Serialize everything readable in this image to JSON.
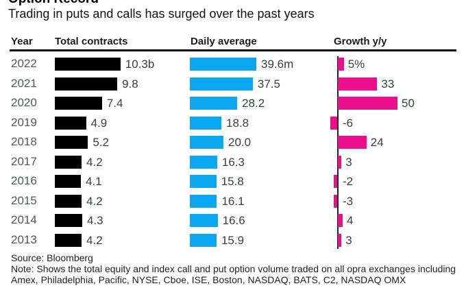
{
  "title": "Option Record",
  "subtitle": "Trading in puts and calls has surged over the past years",
  "columns": {
    "year": "Year",
    "total": "Total contracts",
    "daily": "Daily average",
    "growth": "Growth y/y"
  },
  "rows": [
    {
      "year": "2022",
      "total": 10.3,
      "total_label": "10.3b",
      "daily": 39.6,
      "daily_label": "39.6m",
      "growth": 5,
      "growth_label": "5%"
    },
    {
      "year": "2021",
      "total": 9.8,
      "total_label": "9.8",
      "daily": 37.5,
      "daily_label": "37.5",
      "growth": 33,
      "growth_label": "33"
    },
    {
      "year": "2020",
      "total": 7.4,
      "total_label": "7.4",
      "daily": 28.2,
      "daily_label": "28.2",
      "growth": 50,
      "growth_label": "50"
    },
    {
      "year": "2019",
      "total": 4.9,
      "total_label": "4.9",
      "daily": 18.8,
      "daily_label": "18.8",
      "growth": -6,
      "growth_label": "-6"
    },
    {
      "year": "2018",
      "total": 5.2,
      "total_label": "5.2",
      "daily": 20.0,
      "daily_label": "20.0",
      "growth": 24,
      "growth_label": "24"
    },
    {
      "year": "2017",
      "total": 4.2,
      "total_label": "4.2",
      "daily": 16.3,
      "daily_label": "16.3",
      "growth": 3,
      "growth_label": "3"
    },
    {
      "year": "2016",
      "total": 4.1,
      "total_label": "4.1",
      "daily": 15.8,
      "daily_label": "15.8",
      "growth": -2,
      "growth_label": "-2"
    },
    {
      "year": "2015",
      "total": 4.2,
      "total_label": "4.2",
      "daily": 16.1,
      "daily_label": "16.1",
      "growth": -3,
      "growth_label": "-3"
    },
    {
      "year": "2014",
      "total": 4.3,
      "total_label": "4.3",
      "daily": 16.6,
      "daily_label": "16.6",
      "growth": 4,
      "growth_label": "4"
    },
    {
      "year": "2013",
      "total": 4.2,
      "total_label": "4.2",
      "daily": 15.9,
      "daily_label": "15.9",
      "growth": 3,
      "growth_label": "3"
    }
  ],
  "footer": {
    "source": "Source: Bloomberg",
    "note": "Note: Shows the total equity and index call and put option volume traded on all opra exchanges including Amex, Philadelphia, Pacific, NYSE, Cboe, ISE, Boston, NASDAQ, BATS, C2, NASDAQ OMX"
  },
  "colors": {
    "total_bar": "#000000",
    "daily_bar": "#0ba7f0",
    "growth_bar": "#ec0e8c",
    "axis_line": "#222222"
  },
  "chart_data": {
    "type": "bar",
    "orientation": "horizontal",
    "title": "Option Record",
    "subtitle": "Trading in puts and calls has surged over the past years",
    "categories": [
      "2022",
      "2021",
      "2020",
      "2019",
      "2018",
      "2017",
      "2016",
      "2015",
      "2014",
      "2013"
    ],
    "series": [
      {
        "name": "Total contracts",
        "unit": "billions",
        "values": [
          10.3,
          9.8,
          7.4,
          4.9,
          5.2,
          4.2,
          4.1,
          4.2,
          4.3,
          4.2
        ]
      },
      {
        "name": "Daily average",
        "unit": "millions",
        "values": [
          39.6,
          37.5,
          28.2,
          18.8,
          20.0,
          16.3,
          15.8,
          16.1,
          16.6,
          15.9
        ]
      },
      {
        "name": "Growth y/y",
        "unit": "percent",
        "values": [
          5,
          33,
          50,
          -6,
          24,
          3,
          -2,
          -3,
          4,
          3
        ]
      }
    ],
    "legend": "none",
    "grid": false,
    "source": "Bloomberg"
  }
}
